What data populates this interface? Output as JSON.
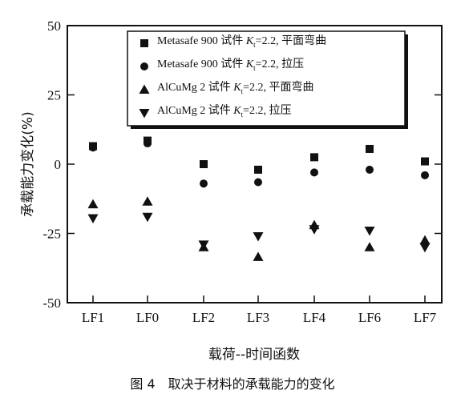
{
  "chart_data": {
    "type": "scatter",
    "title": "",
    "xlabel": "载荷--时间函数",
    "ylabel": "承载能力变化(%)",
    "caption": "图 4　取决于材料的承载能力的变化",
    "categories": [
      "LF1",
      "LF0",
      "LF2",
      "LF3",
      "LF4",
      "LF6",
      "LF7"
    ],
    "ylim": [
      -50,
      50
    ],
    "yticks": [
      "50",
      "25",
      "0",
      "-25",
      "-50"
    ],
    "grid": false,
    "legend_position": "top-right",
    "series": [
      {
        "legend_html": "Metasafe 900 试件 <i>K</i><sub>t</sub>=2.2, 平面弯曲",
        "marker": "square",
        "values": [
          6.5,
          8.5,
          0,
          -2,
          2.5,
          5.5,
          1
        ]
      },
      {
        "legend_html": "Metasafe 900 试件 <i>K</i><sub>t</sub>=2.2, 拉压",
        "marker": "circle",
        "values": [
          6,
          7.5,
          -7,
          -6.5,
          -3,
          -2,
          -4
        ]
      },
      {
        "legend_html": "AlCuMg 2 试件 <i>K</i><sub>t</sub>=2.2, 平面弯曲",
        "marker": "triangle-up",
        "values": [
          -14.5,
          -13.5,
          -30,
          -33.5,
          -22,
          -30,
          -27.5
        ]
      },
      {
        "legend_html": "AlCuMg 2 试件 <i>K</i><sub>t</sub>=2.2, 拉压",
        "marker": "triangle-down",
        "values": [
          -19.5,
          -19,
          -29,
          -26,
          -23.5,
          -24,
          -30
        ]
      }
    ]
  }
}
